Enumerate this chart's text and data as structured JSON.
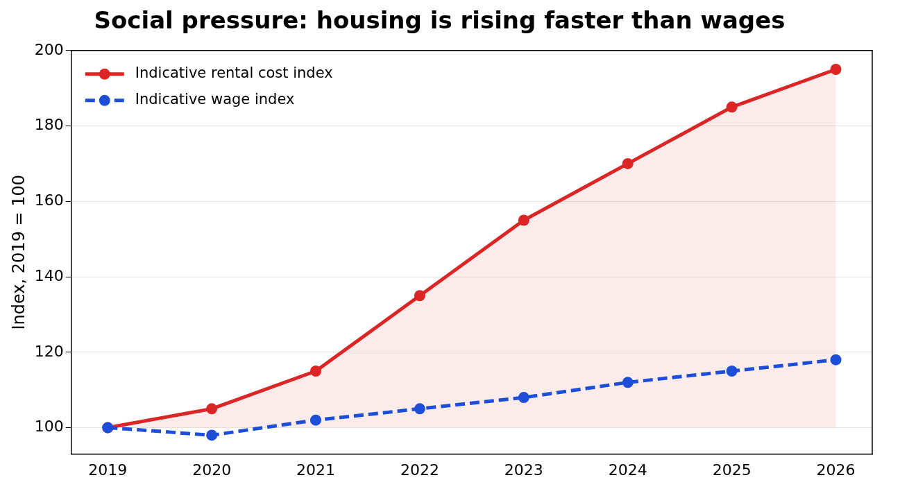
{
  "chart_data": {
    "type": "line",
    "title": "Social pressure: housing is rising faster than wages",
    "ylabel": "Index, 2019 = 100",
    "x": [
      2019,
      2020,
      2021,
      2022,
      2023,
      2024,
      2025,
      2026
    ],
    "series": [
      {
        "name": "Indicative rental cost index",
        "color": "#dc2626",
        "values": [
          100,
          105,
          115,
          135,
          155,
          170,
          185,
          195
        ],
        "lower": [
          100,
          100,
          100,
          100,
          100,
          100,
          100,
          100
        ],
        "upper": [
          100,
          105,
          115,
          135,
          155,
          170,
          185,
          195
        ],
        "line_style": "solid"
      },
      {
        "name": "Indicative wage index",
        "color": "#1d4ed8",
        "values": [
          100,
          98,
          102,
          105,
          108,
          112,
          115,
          118
        ],
        "line_style": "dashed"
      }
    ],
    "xlim": [
      2018.65,
      2026.35
    ],
    "xticks": [
      2019,
      2020,
      2021,
      2022,
      2023,
      2024,
      2025,
      2026
    ],
    "ylim": [
      93,
      200
    ],
    "yticks": [
      100,
      120,
      140,
      160,
      180,
      200
    ],
    "grid": "y",
    "legend": "top left",
    "marker": "circle"
  }
}
